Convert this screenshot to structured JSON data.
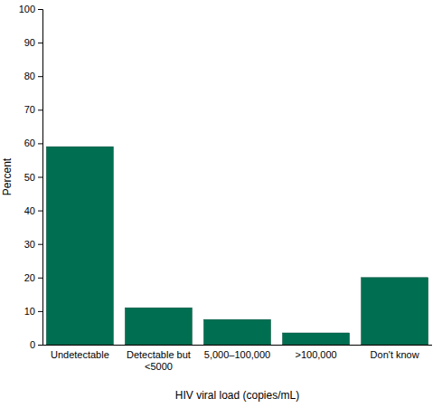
{
  "chart_data": {
    "type": "bar",
    "x_label": "HIV viral load (copies/mL)",
    "y_label": "Percent",
    "categories": [
      "Undetectable",
      "Detectable but <5000",
      "5,000–100,000",
      ">100,000",
      "Don't know"
    ],
    "values": [
      59,
      11,
      7.5,
      3.5,
      20
    ],
    "color": "#006f51",
    "ylim": [
      0,
      100
    ],
    "yticks": [
      0,
      10,
      20,
      30,
      40,
      50,
      60,
      70,
      80,
      90,
      100
    ],
    "grid": false
  }
}
